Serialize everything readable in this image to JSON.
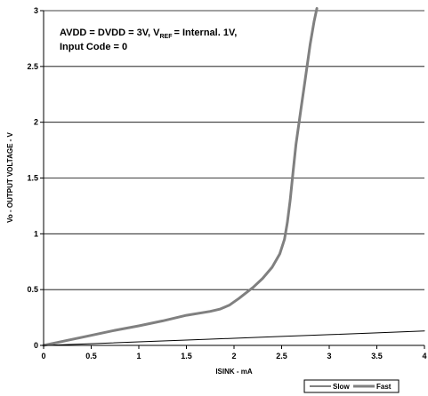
{
  "chart_data": {
    "type": "line",
    "xlabel": "ISINK - mA",
    "ylabel": "Vo - OUTPUT VOLTAGE - V",
    "xlim": [
      0,
      4
    ],
    "ylim": [
      0,
      3
    ],
    "x_ticks": [
      "0",
      "0.5",
      "1",
      "1.5",
      "2",
      "2.5",
      "3",
      "3.5",
      "4"
    ],
    "y_ticks": [
      "0",
      "0.5",
      "1",
      "1.5",
      "2",
      "2.5",
      "3"
    ],
    "grid": "horizontal",
    "legend_position": "bottom-right",
    "annotation": {
      "line1_a": "AVDD = DVDD = 3V, V",
      "line1_sub": "REF",
      "line1_b": "= Internal. 1V,",
      "line2": "Input Code = 0"
    },
    "series": [
      {
        "name": "Slow",
        "color": "#000000",
        "x": [
          0,
          0.5,
          1,
          1.5,
          2,
          2.5,
          3,
          3.5,
          4
        ],
        "y": [
          0,
          0.015,
          0.032,
          0.048,
          0.064,
          0.08,
          0.096,
          0.112,
          0.13
        ]
      },
      {
        "name": "Fast",
        "color": "#808080",
        "x": [
          0,
          0.25,
          0.5,
          0.75,
          1,
          1.25,
          1.5,
          1.75,
          1.85,
          1.95,
          2.05,
          2.2,
          2.3,
          2.4,
          2.48,
          2.53,
          2.56,
          2.59,
          2.62,
          2.65,
          2.7,
          2.75,
          2.8,
          2.84,
          2.87
        ],
        "y": [
          0,
          0.045,
          0.09,
          0.135,
          0.175,
          0.22,
          0.27,
          0.305,
          0.325,
          0.36,
          0.42,
          0.52,
          0.6,
          0.7,
          0.82,
          0.95,
          1.1,
          1.3,
          1.55,
          1.8,
          2.1,
          2.4,
          2.7,
          2.9,
          3.02
        ]
      }
    ]
  }
}
